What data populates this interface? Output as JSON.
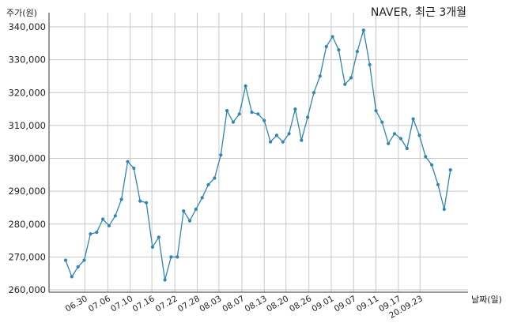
{
  "chart_data": {
    "type": "line",
    "title": "NAVER, 최근 3개월",
    "ylabel": "주가(원)",
    "xlabel": "날짜(일)",
    "ylim": [
      259000,
      342000
    ],
    "yticks": [
      260000,
      270000,
      280000,
      290000,
      300000,
      310000,
      320000,
      330000,
      340000
    ],
    "ytick_labels": [
      "260,000",
      "270,000",
      "280,000",
      "290,000",
      "300,000",
      "310,000",
      "320,000",
      "330,000",
      "340,000"
    ],
    "xtick_labels": [
      "06.30",
      "07.06",
      "07.10",
      "07.16",
      "07.22",
      "07.28",
      "08.03",
      "08.07",
      "08.13",
      "08.20",
      "08.26",
      "09.01",
      "09.07",
      "09.11",
      "09.17",
      "20.09.23"
    ],
    "xtick_positions": [
      3.1,
      6.8,
      10.4,
      13.9,
      17.6,
      21.2,
      24.7,
      28.4,
      32.0,
      35.5,
      39.2,
      42.8,
      46.4,
      50.0,
      53.6,
      57.1
    ],
    "grid": true,
    "color": "#2f86b4",
    "series": [
      {
        "name": "",
        "values": [
          269000,
          264000,
          267000,
          269000,
          277000,
          277500,
          281500,
          279500,
          282500,
          287500,
          299000,
          297000,
          287000,
          286500,
          273000,
          276000,
          263000,
          270000,
          270000,
          284000,
          281000,
          284500,
          288000,
          292000,
          294000,
          301000,
          314500,
          311000,
          313500,
          322000,
          314000,
          313500,
          311500,
          305000,
          307000,
          305000,
          307500,
          315000,
          305500,
          312500,
          320000,
          325000,
          334000,
          337000,
          333000,
          322500,
          324500,
          332500,
          339000,
          328500,
          314500,
          311000,
          304500,
          307500,
          306000,
          303000,
          312000,
          307000,
          300500,
          298000,
          292000,
          284500,
          296500
        ]
      }
    ]
  }
}
